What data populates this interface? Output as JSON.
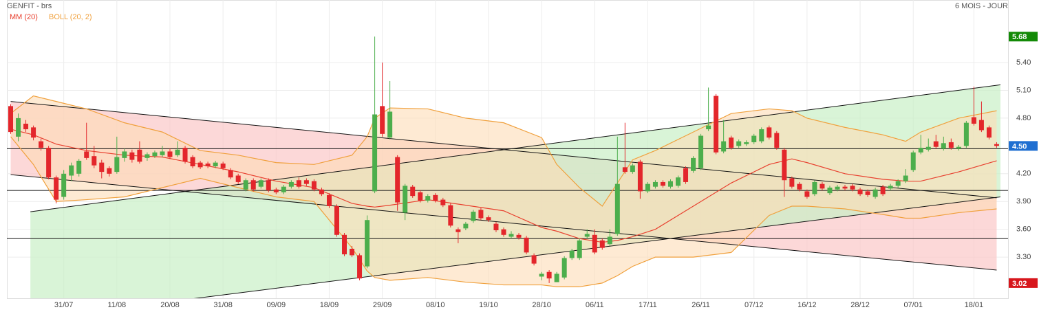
{
  "chart_data": {
    "type": "candlestick",
    "title": "GENFIT - brs",
    "subtitle": "6 MOIS - JOUR",
    "categories": [
      null,
      null,
      null,
      null,
      null,
      null,
      null,
      "31/07",
      null,
      null,
      null,
      null,
      null,
      null,
      "11/08",
      null,
      null,
      null,
      null,
      null,
      null,
      "20/08",
      null,
      null,
      null,
      null,
      null,
      null,
      "31/08",
      null,
      null,
      null,
      null,
      null,
      null,
      "09/09",
      null,
      null,
      null,
      null,
      null,
      null,
      "18/09",
      null,
      null,
      null,
      null,
      null,
      null,
      "29/09",
      null,
      null,
      null,
      null,
      null,
      null,
      "08/10",
      null,
      null,
      null,
      null,
      null,
      null,
      "19/10",
      null,
      null,
      null,
      null,
      null,
      null,
      "28/10",
      null,
      null,
      null,
      null,
      null,
      null,
      "06/11",
      null,
      null,
      null,
      null,
      null,
      null,
      "17/11",
      null,
      null,
      null,
      null,
      null,
      null,
      "26/11",
      null,
      null,
      null,
      null,
      null,
      null,
      "07/12",
      null,
      null,
      null,
      null,
      null,
      null,
      "16/12",
      null,
      null,
      null,
      null,
      null,
      null,
      "28/12",
      null,
      null,
      null,
      null,
      null,
      null,
      "07/01",
      null,
      null,
      null,
      null,
      null,
      null,
      null,
      "18/01",
      null,
      null,
      null
    ],
    "open": [
      4.93,
      4.6,
      4.74,
      4.7,
      4.55,
      4.48,
      4.16,
      3.95,
      4.18,
      4.2,
      4.44,
      4.39,
      4.32,
      4.26,
      4.22,
      4.37,
      4.43,
      4.46,
      4.37,
      4.39,
      4.4,
      4.44,
      4.4,
      4.48,
      4.38,
      4.32,
      4.31,
      4.28,
      4.31,
      4.24,
      4.18,
      4.03,
      4.13,
      4.06,
      4.13,
      4.03,
      4.0,
      4.06,
      4.13,
      4.13,
      4.12,
      4.03,
      3.97,
      3.85,
      3.54,
      3.39,
      3.32,
      3.2,
      4.01,
      4.93,
      4.59,
      4.38,
      3.78,
      4.06,
      4.0,
      3.91,
      3.97,
      3.92,
      3.86,
      3.6,
      3.61,
      3.69,
      3.81,
      3.73,
      3.66,
      3.6,
      3.52,
      3.54,
      3.51,
      3.32,
      3.09,
      3.14,
      3.03,
      3.08,
      3.29,
      3.29,
      3.52,
      3.54,
      3.48,
      3.44,
      3.55,
      4.27,
      4.22,
      4.33,
      4.01,
      4.06,
      4.11,
      4.06,
      4.07,
      4.26,
      4.23,
      4.26,
      4.68,
      5.04,
      4.44,
      4.59,
      4.5,
      4.52,
      4.54,
      4.55,
      4.7,
      4.64,
      4.46,
      4.15,
      4.09,
      4.01,
      3.98,
      4.09,
      3.99,
      4.03,
      4.06,
      4.07,
      4.03,
      4.01,
      3.95,
      4.06,
      4.04,
      4.07,
      4.12,
      4.24,
      4.43,
      4.46,
      4.55,
      4.47,
      4.54,
      4.47,
      4.5,
      4.81,
      4.78,
      4.7,
      4.52
    ],
    "high": [
      4.95,
      4.85,
      4.78,
      4.72,
      4.58,
      4.5,
      4.18,
      4.24,
      4.32,
      4.36,
      4.75,
      4.5,
      4.35,
      4.28,
      4.6,
      4.47,
      4.46,
      4.55,
      4.43,
      4.45,
      4.5,
      4.47,
      4.55,
      4.5,
      4.4,
      4.34,
      4.33,
      4.34,
      4.33,
      4.26,
      4.2,
      4.15,
      4.15,
      4.15,
      4.15,
      4.05,
      4.08,
      4.13,
      4.16,
      4.15,
      4.14,
      4.05,
      3.99,
      3.87,
      3.56,
      3.42,
      3.34,
      3.75,
      5.68,
      5.4,
      5.2,
      4.4,
      4.09,
      4.08,
      4.02,
      3.98,
      3.99,
      3.94,
      3.88,
      3.62,
      3.68,
      3.81,
      3.83,
      3.75,
      3.68,
      3.62,
      3.58,
      3.56,
      3.53,
      3.34,
      3.14,
      3.16,
      3.14,
      3.31,
      3.39,
      3.5,
      3.6,
      3.6,
      3.5,
      3.6,
      4.6,
      4.75,
      4.31,
      4.35,
      4.11,
      4.13,
      4.13,
      4.14,
      4.18,
      4.28,
      4.39,
      4.63,
      5.13,
      5.06,
      4.78,
      4.61,
      4.57,
      4.56,
      4.63,
      4.7,
      4.72,
      4.66,
      4.48,
      4.17,
      4.11,
      4.03,
      4.13,
      4.11,
      4.07,
      4.08,
      4.08,
      4.09,
      4.05,
      4.03,
      4.05,
      4.08,
      4.09,
      4.14,
      4.25,
      4.45,
      4.62,
      4.58,
      4.62,
      4.6,
      4.58,
      4.51,
      4.77,
      5.14,
      4.98,
      4.72,
      4.54
    ],
    "low": [
      4.63,
      4.55,
      4.65,
      4.56,
      4.45,
      4.14,
      3.88,
      3.92,
      4.12,
      4.17,
      4.35,
      4.26,
      4.15,
      4.17,
      4.2,
      4.33,
      4.32,
      4.31,
      4.34,
      4.37,
      4.38,
      4.36,
      4.38,
      4.31,
      4.26,
      4.25,
      4.26,
      4.26,
      4.24,
      4.14,
      4.09,
      4.01,
      4.01,
      4.04,
      4.0,
      3.98,
      3.98,
      4.04,
      4.04,
      4.07,
      4.01,
      3.96,
      3.83,
      3.52,
      3.31,
      3.3,
      3.05,
      3.18,
      3.99,
      4.6,
      4.57,
      3.8,
      3.7,
      3.94,
      3.89,
      3.89,
      3.89,
      3.84,
      3.62,
      3.45,
      3.59,
      3.67,
      3.7,
      3.68,
      3.57,
      3.52,
      3.5,
      3.49,
      3.33,
      3.21,
      3.05,
      3.02,
      3.03,
      3.06,
      3.27,
      3.27,
      3.5,
      3.33,
      3.38,
      3.42,
      3.53,
      4.2,
      4.2,
      3.93,
      3.99,
      4.04,
      4.05,
      4.04,
      4.05,
      4.09,
      4.21,
      4.24,
      4.66,
      4.41,
      4.42,
      4.46,
      4.48,
      4.5,
      4.52,
      4.53,
      4.57,
      4.46,
      3.95,
      4.04,
      4.01,
      3.93,
      3.96,
      4.02,
      3.97,
      4.01,
      4.02,
      4.01,
      3.96,
      3.95,
      3.93,
      3.96,
      4.02,
      4.05,
      4.1,
      4.22,
      4.41,
      4.44,
      4.47,
      4.45,
      4.46,
      4.45,
      4.48,
      4.72,
      4.65,
      4.57,
      4.48
    ],
    "close": [
      4.65,
      4.8,
      4.68,
      4.59,
      4.48,
      4.16,
      3.92,
      4.2,
      4.29,
      4.34,
      4.37,
      4.29,
      4.22,
      4.2,
      4.38,
      4.44,
      4.35,
      4.33,
      4.41,
      4.43,
      4.44,
      4.38,
      4.46,
      4.33,
      4.28,
      4.27,
      4.28,
      4.32,
      4.26,
      4.16,
      4.11,
      4.13,
      4.03,
      4.13,
      4.02,
      4.0,
      4.06,
      4.11,
      4.06,
      4.09,
      4.03,
      3.98,
      3.85,
      3.54,
      3.33,
      3.32,
      3.07,
      3.7,
      4.84,
      4.63,
      4.87,
      3.89,
      4.07,
      3.96,
      3.91,
      3.96,
      3.91,
      3.86,
      3.64,
      3.57,
      3.66,
      3.79,
      3.72,
      3.7,
      3.59,
      3.54,
      3.55,
      3.51,
      3.35,
      3.23,
      3.12,
      3.07,
      3.12,
      3.29,
      3.37,
      3.48,
      3.55,
      3.35,
      3.4,
      3.52,
      4.09,
      4.22,
      4.29,
      4.01,
      4.09,
      4.11,
      4.07,
      4.12,
      4.16,
      4.11,
      4.37,
      4.61,
      4.72,
      4.43,
      4.55,
      4.48,
      4.55,
      4.54,
      4.61,
      4.68,
      4.59,
      4.48,
      4.13,
      4.06,
      4.03,
      3.95,
      4.11,
      4.04,
      4.05,
      4.06,
      4.04,
      4.03,
      3.98,
      3.97,
      4.03,
      3.98,
      4.07,
      4.12,
      4.18,
      4.43,
      4.48,
      4.49,
      4.49,
      4.53,
      4.48,
      4.49,
      4.75,
      4.74,
      4.67,
      4.59,
      4.5
    ],
    "up_color": "#4cae4c",
    "down_color": "#e3262b",
    "ylim": [
      2.856,
      6.075
    ],
    "yticks": [
      {
        "value": 3.3,
        "label": "3.30"
      },
      {
        "value": 3.6,
        "label": "3.60"
      },
      {
        "value": 3.9,
        "label": "3.90"
      },
      {
        "value": 4.2,
        "label": "4.20"
      },
      {
        "value": 4.8,
        "label": "4.80"
      },
      {
        "value": 5.1,
        "label": "5.10"
      },
      {
        "value": 5.4,
        "label": "5.40"
      }
    ],
    "grid": true,
    "levels": [
      4.47,
      4.02,
      3.5
    ],
    "channels": [
      {
        "color": "#fbc8c8",
        "upper": {
          "x": [
            0,
            130
          ],
          "values": [
            4.98,
            3.94
          ]
        },
        "lower": {
          "x": [
            0,
            130
          ],
          "values": [
            4.19,
            3.16
          ]
        }
      },
      {
        "color": "#c9efc6",
        "upper": {
          "x": [
            2.6,
            130.5
          ],
          "values": [
            3.79,
            5.16
          ]
        },
        "lower": {
          "x": [
            2.6,
            130.5
          ],
          "values": [
            2.63,
            3.95
          ]
        }
      }
    ],
    "overlays": [
      {
        "name": "MM (20)",
        "color": "#e8402f",
        "x": [
          0,
          3,
          6,
          10,
          15,
          20,
          25,
          30,
          35,
          40,
          45,
          47,
          48,
          50,
          55,
          60,
          65,
          70,
          72,
          75,
          78,
          80,
          82,
          85,
          90,
          95,
          100,
          103,
          105,
          110,
          115,
          118,
          120,
          125,
          130
        ],
        "values": [
          4.68,
          4.62,
          4.52,
          4.45,
          4.4,
          4.38,
          4.3,
          4.22,
          4.12,
          4.05,
          3.88,
          3.85,
          3.84,
          3.86,
          3.92,
          3.86,
          3.8,
          3.62,
          3.58,
          3.5,
          3.46,
          3.48,
          3.52,
          3.6,
          3.85,
          4.1,
          4.3,
          4.36,
          4.32,
          4.2,
          4.14,
          4.12,
          4.12,
          4.22,
          4.34
        ]
      },
      {
        "name": "BOLL (20, 2)",
        "color": "#f0a03c",
        "fill": "#fddcb5",
        "x": [
          0,
          3,
          6,
          10,
          15,
          20,
          25,
          30,
          35,
          40,
          45,
          47,
          48,
          50,
          55,
          60,
          65,
          70,
          72,
          75,
          78,
          80,
          82,
          85,
          90,
          95,
          100,
          103,
          105,
          110,
          115,
          118,
          120,
          125,
          130
        ],
        "upper": [
          4.85,
          5.04,
          4.98,
          4.9,
          4.75,
          4.65,
          4.45,
          4.4,
          4.32,
          4.3,
          4.4,
          4.6,
          4.8,
          4.91,
          4.9,
          4.8,
          4.75,
          4.59,
          4.3,
          4.05,
          3.85,
          4.1,
          4.35,
          4.45,
          4.65,
          4.85,
          4.9,
          4.88,
          4.8,
          4.7,
          4.62,
          4.55,
          4.65,
          4.8,
          4.88
        ],
        "lower": [
          4.6,
          4.3,
          3.9,
          3.92,
          3.95,
          4.05,
          4.15,
          4.05,
          3.95,
          3.9,
          3.4,
          3.15,
          3.08,
          3.05,
          3.08,
          3.03,
          3.0,
          3.0,
          2.98,
          2.98,
          3.02,
          3.1,
          3.2,
          3.3,
          3.3,
          3.35,
          3.75,
          3.85,
          3.85,
          3.82,
          3.76,
          3.72,
          3.72,
          3.78,
          3.82
        ]
      }
    ],
    "price_tags": [
      {
        "value": 5.68,
        "color": "#138a07"
      },
      {
        "value": 4.5,
        "label": "4.50",
        "color": "#1f6fd1"
      },
      {
        "value": 3.02,
        "color": "#d7161c"
      }
    ]
  }
}
